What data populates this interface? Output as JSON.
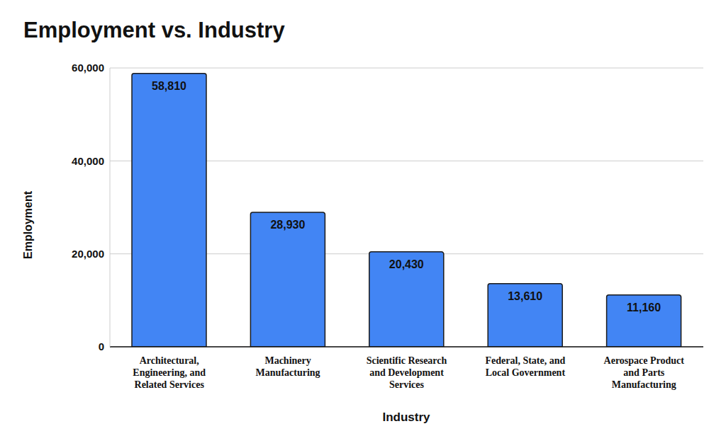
{
  "chart_data": {
    "type": "bar",
    "title": "Employment vs. Industry",
    "x_label": "Industry",
    "y_label": "Employment",
    "categories": [
      "Architectural, Engineering, and Related Services",
      "Machinery Manufacturing",
      "Scientific Research and Development Services",
      "Federal, State, and Local Government",
      "Aerospace Product and Parts Manufacturing"
    ],
    "values": [
      58810,
      28930,
      20430,
      13610,
      11160
    ],
    "value_labels": [
      "58,810",
      "28,930",
      "20,430",
      "13,610",
      "11,160"
    ],
    "color": "#4285f4",
    "ylim": [
      0,
      60000
    ],
    "yticks": [
      0,
      {
        "value": 20000,
        "label": "20,000"
      },
      {
        "value": 40000,
        "label": "40,000"
      },
      {
        "value": 60000,
        "label": "60,000"
      }
    ],
    "grid": true,
    "data_labels": true
  }
}
